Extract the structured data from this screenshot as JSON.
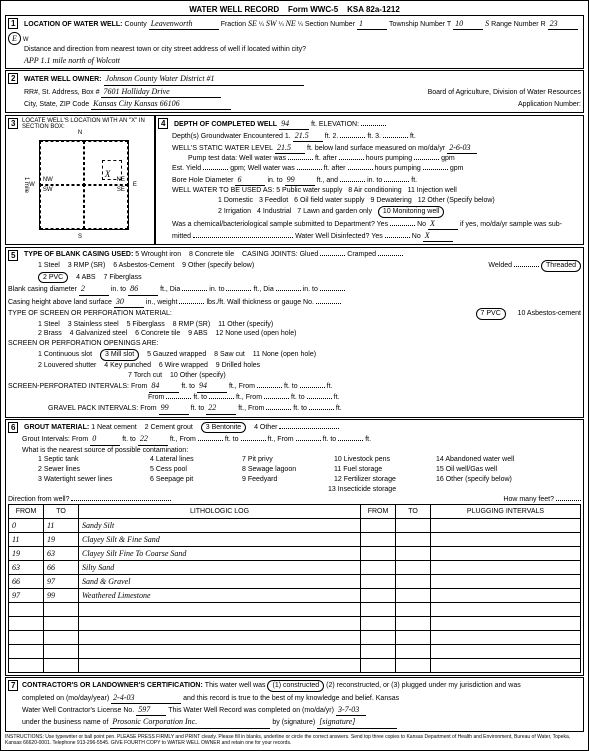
{
  "header": {
    "title": "WATER WELL RECORD",
    "form": "Form WWC-5",
    "ksa": "KSA 82a-1212"
  },
  "sec1": {
    "title": "LOCATION OF WATER WELL:",
    "county": "Leavenworth",
    "fraction_q1": "SE",
    "fraction_q2": "SW",
    "fraction_q3": "NE",
    "section_num": "1",
    "township": "10",
    "township_dir": "S",
    "range": "23",
    "range_dir": "E",
    "distance_label": "Distance and direction from nearest town or city street address of well if located within city?",
    "distance": "APP 1.1 mile north of Wolcott"
  },
  "sec2": {
    "title": "WATER WELL OWNER:",
    "owner": "Johnson County Water District #1",
    "addr_label": "RR#, St. Address, Box #",
    "addr": "7601 Holliday Drive",
    "city_label": "City, State, ZIP Code",
    "city": "Kansas City Kansas 66106",
    "board": "Board of Agriculture, Division of Water Resources",
    "appnum": "Application Number:"
  },
  "sec3": {
    "title": "LOCATE WELL'S LOCATION WITH AN \"X\" IN SECTION BOX:",
    "nw": "NW",
    "ne": "NE",
    "sw": "SW",
    "se": "SE",
    "n": "N",
    "s": "S",
    "e": "E",
    "w": "W",
    "mile": "1 mile",
    "x": "X"
  },
  "sec4": {
    "title": "DEPTH OF COMPLETED WELL",
    "depth": "94",
    "elev_label": "ft. ELEVATION:",
    "gw1_label": "Depth(s) Groundwater Encountered 1.",
    "gw1": "21.5",
    "gw2_label": "ft. 2.",
    "gw3_label": "ft. 3.",
    "swl_label": "WELL'S STATIC WATER LEVEL",
    "swl": "21.5",
    "swl_after": "ft. below land surface measured on mo/da/yr",
    "swl_date": "2-6-03",
    "pump_label": "Pump test data:",
    "ww_label": "Well water was",
    "after": "ft. after",
    "hp": "hours pumping",
    "gpm": "gpm",
    "est_label": "Est. Yield",
    "gpm2": "gpm;",
    "bore_label": "Bore Hole Diameter",
    "bore": "6",
    "into": "in. to",
    "bore_to": "99",
    "ftand": "ft., and",
    "into2": "in. to",
    "ft": "ft.",
    "use_label": "WELL WATER TO BE USED AS:",
    "uses": [
      "1 Domestic",
      "2 Irrigation",
      "3 Feedlot",
      "4 Industrial",
      "5 Public water supply",
      "6 Oil field water supply",
      "7 Lawn and garden only",
      "8 Air conditioning",
      "9 Dewatering",
      "10 Monitoring well",
      "11 Injection well",
      "12 Other (Specify below)"
    ],
    "chem_label": "Was a chemical/bacteriological sample submitted to Department? Yes",
    "chem": "X",
    "no": "No",
    "ifyes": "if yes, mo/da/yr sample was sub-",
    "mitted": "mitted",
    "disinfect": "Water Well Disinfected?",
    "dyes": "Yes",
    "dno": "No",
    "dx": "X"
  },
  "sec5": {
    "title": "TYPE OF BLANK CASING USED:",
    "casing_types": [
      "1 Steel",
      "2 PVC",
      "3 RMP (SR)",
      "4 ABS",
      "5 Wrought iron",
      "6 Asbestos-Cement",
      "7 Fiberglass",
      "8 Concrete tile",
      "9 Other (specify below)"
    ],
    "joints_label": "CASING JOINTS: Glued",
    "cramped": "Cramped",
    "welded": "Welded",
    "threaded": "Threaded",
    "bcd_label": "Blank casing diameter",
    "bcd": "2",
    "into": "in. to",
    "bcd_to": "86",
    "ftdia": "ft., Dia",
    "into2": "in. to",
    "ftdia2": "ft., Dia",
    "into3": "in. to",
    "cheight_label": "Casing height above land surface",
    "cheight": "30",
    "inwt": "in., weight",
    "lbsft": "lbs./ft. Wall thickness or gauge No.",
    "screen_label": "TYPE OF SCREEN OR PERFORATION MATERIAL:",
    "screen_types": [
      "1 Steel",
      "2 Brass",
      "3 Stainless steel",
      "4 Galvanized steel",
      "5 Fiberglass",
      "6 Concrete tile",
      "7 PVC",
      "8 RMP (SR)",
      "9 ABS",
      "10 Asbestos-cement",
      "11 Other (specify)",
      "12 None used (open hole)"
    ],
    "perf_label": "SCREEN OR PERFORATION OPENINGS ARE:",
    "perf_types": [
      "1 Continuous slot",
      "2 Louvered shutter",
      "3 Mill slot",
      "4 Key punched",
      "5 Gauzed wrapped",
      "6 Wire wrapped",
      "7 Torch cut",
      "8 Saw cut",
      "9 Drilled holes",
      "10 Other (specify)",
      "11 None (open hole)"
    ],
    "spi_label": "SCREEN-PERFORATED INTERVALS:",
    "from": "From",
    "to": "to",
    "spi_from": "84",
    "spi_to": "94",
    "ftfrom": "ft., From",
    "ftto": "ft. to",
    "ft": "ft.",
    "gpi_label": "GRAVEL PACK INTERVALS:",
    "gpi_from": "99",
    "gpi_to": "22"
  },
  "sec6": {
    "title": "GROUT MATERIAL:",
    "grouts": [
      "1 Neat cement",
      "2 Cement grout",
      "3 Bentonite",
      "4 Other"
    ],
    "gi_label": "Grout Intervals:",
    "from": "From",
    "gi_from": "0",
    "ftto": "ft. to",
    "gi_to": "22",
    "ftfrom": "ft., From",
    "contam_label": "What is the nearest source of possible contamination:",
    "contam": [
      "1 Septic tank",
      "2 Sewer lines",
      "3 Watertight sewer lines",
      "4 Lateral lines",
      "5 Cess pool",
      "6 Seepage pit",
      "7 Pit privy",
      "8 Sewage lagoon",
      "9 Feedyard",
      "10 Livestock pens",
      "11 Fuel storage",
      "12 Fertilizer storage",
      "13 Insecticide storage",
      "14 Abandoned water well",
      "15 Oil well/Gas well",
      "16 Other (specify below)"
    ],
    "dir_label": "Direction from well?",
    "howmany": "How many feet?",
    "log_headers": [
      "FROM",
      "TO",
      "LITHOLOGIC LOG",
      "FROM",
      "TO",
      "PLUGGING INTERVALS"
    ],
    "log_rows": [
      [
        "0",
        "11",
        "Sandy Silt",
        "",
        "",
        ""
      ],
      [
        "11",
        "19",
        "Clayey Silt & Fine Sand",
        "",
        "",
        ""
      ],
      [
        "19",
        "63",
        "Clayey Silt Fine To Coarse Sand",
        "",
        "",
        ""
      ],
      [
        "63",
        "66",
        "Silty Sand",
        "",
        "",
        ""
      ],
      [
        "66",
        "97",
        "Sand & Gravel",
        "",
        "",
        ""
      ],
      [
        "97",
        "99",
        "Weathered Limestone",
        "",
        "",
        ""
      ],
      [
        "",
        "",
        "",
        "",
        "",
        ""
      ],
      [
        "",
        "",
        "",
        "",
        "",
        ""
      ],
      [
        "",
        "",
        "",
        "",
        "",
        ""
      ],
      [
        "",
        "",
        "",
        "",
        "",
        ""
      ],
      [
        "",
        "",
        "",
        "",
        "",
        ""
      ]
    ]
  },
  "sec7": {
    "title": "CONTRACTOR'S OR LANDOWNER'S CERTIFICATION:",
    "cert_text": "This water well was",
    "opt1": "(1) constructed",
    "opt2": "(2) reconstructed, or (3) plugged under my jurisdiction and was",
    "completed_label": "completed on (mo/day/year)",
    "completed": "2-4-03",
    "record_text": "and this record is true to the best of my knowledge and belief. Kansas",
    "lic_label": "Water Well Contractor's License No.",
    "lic": "597",
    "rec_completed": "This Water Well Record was completed on (mo/da/yr)",
    "rec_date": "3-7-03",
    "biz_label": "under the business name of",
    "biz": "Prosonic Corporation Inc.",
    "sig_label": "by (signature)",
    "sig": "[signature]"
  },
  "instructions": "INSTRUCTIONS: Use typewriter or ball point pen. PLEASE PRESS FIRMLY and PRINT clearly. Please fill in blanks, underline or circle the correct answers. Send top three copies to Kansas Department of Health and Environment, Bureau of Water, Topeka, Kansas 66620-0001. Telephone 913-296-5545. GIVE FOURTH COPY to WATER WELL OWNER and retain one for your records."
}
